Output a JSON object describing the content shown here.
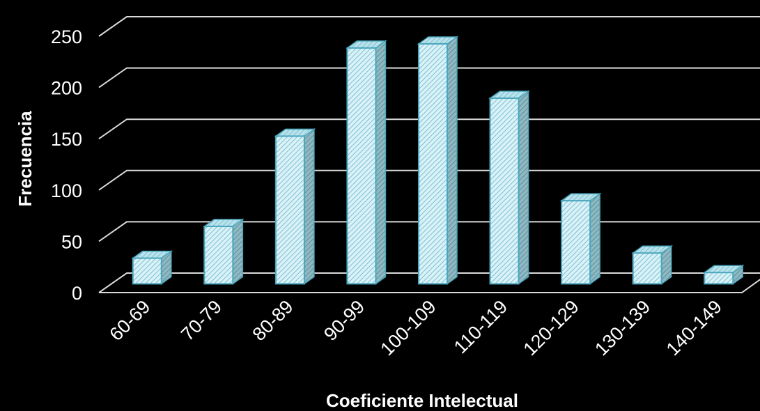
{
  "chart_data": {
    "type": "bar",
    "style": "3d-column",
    "title": "",
    "xlabel": "Coeficiente Intelectual",
    "ylabel": "Frecuencia",
    "categories": [
      "60-69",
      "70-79",
      "80-89",
      "90-99",
      "100-109",
      "110-119",
      "120-129",
      "130-139",
      "140-149"
    ],
    "series": [
      {
        "values": [
          25,
          56,
          144,
          230,
          234,
          181,
          81,
          30,
          11
        ]
      }
    ],
    "ylim": [
      0,
      250
    ],
    "yticks": [
      0,
      50,
      100,
      150,
      200,
      250
    ],
    "grid": true,
    "legend": "none",
    "colors": {
      "background": "#000000",
      "bar_fill": "#d9f2f8",
      "bar_hatch": "#7fbfcf",
      "bar_edge": "#4aa6bd",
      "bar_side": "#6b9ea8",
      "bar_top": "#9fd6e2",
      "gridline": "#d9d9d9",
      "text": "#ffffff"
    }
  }
}
